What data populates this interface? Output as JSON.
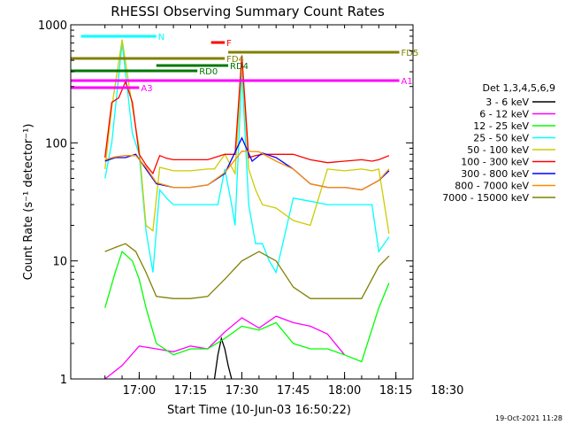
{
  "chart_data": {
    "type": "line",
    "title": "RHESSI Observing Summary Count Rates",
    "xlabel": "Start Time (10-Jun-03 16:50:22)",
    "ylabel": "Count Rate (s⁻¹ detector⁻¹)",
    "yscale": "log",
    "ylim": [
      1,
      1000
    ],
    "xlim_minutes": [
      -10,
      90
    ],
    "x_tick_labels": [
      "17:00",
      "17:15",
      "17:30",
      "17:45",
      "18:00",
      "18:15",
      "18:30"
    ],
    "x_tick_minutes": [
      10,
      25,
      40,
      55,
      70,
      85,
      100
    ],
    "y_tick_labels": [
      "1",
      "10",
      "100",
      "1000"
    ],
    "y_tick_values": [
      1,
      10,
      100,
      1000
    ],
    "legend_title": "Det 1,3,4,5,6,9",
    "legend_position": "right",
    "timestamp": "19-Oct-2021 11:28",
    "series": [
      {
        "name": "3 - 6 keV",
        "color": "#000000",
        "x": [
          32,
          33,
          34,
          35,
          36,
          37
        ],
        "values": [
          1,
          1.6,
          2.2,
          1.8,
          1.3,
          1
        ]
      },
      {
        "name": "6 - 12 keV",
        "color": "#ff00ff",
        "x": [
          0,
          5,
          10,
          15,
          20,
          25,
          30,
          35,
          40,
          45,
          50,
          55,
          60,
          65,
          70
        ],
        "values": [
          1,
          1.3,
          1.9,
          1.8,
          1.7,
          1.9,
          1.8,
          2.5,
          3.3,
          2.7,
          3.4,
          3.0,
          2.8,
          2.4,
          1.6
        ]
      },
      {
        "name": "12 - 25 keV",
        "color": "#00ff00",
        "x": [
          0,
          3,
          5,
          8,
          10,
          12,
          15,
          20,
          25,
          30,
          35,
          40,
          45,
          50,
          55,
          60,
          65,
          70,
          75,
          80,
          83
        ],
        "values": [
          4,
          8,
          12,
          10,
          7,
          4,
          2,
          1.6,
          1.8,
          1.8,
          2.2,
          2.8,
          2.6,
          3,
          2,
          1.8,
          1.8,
          1.6,
          1.4,
          4,
          6.5
        ]
      },
      {
        "name": "25 - 50 keV",
        "color": "#00ffff",
        "x": [
          0,
          2,
          5,
          8,
          10,
          12,
          14,
          16,
          18,
          20,
          25,
          30,
          33,
          35,
          37,
          38,
          40,
          42,
          44,
          46,
          48,
          50,
          55,
          60,
          65,
          70,
          75,
          78,
          80,
          83
        ],
        "values": [
          50,
          100,
          700,
          120,
          80,
          18,
          8,
          40,
          34,
          30,
          30,
          30,
          30,
          60,
          30,
          20,
          400,
          30,
          14,
          14,
          10,
          8,
          34,
          32,
          30,
          30,
          30,
          30,
          12,
          16
        ]
      },
      {
        "name": "50 - 100 keV",
        "color": "#cccc00",
        "x": [
          0,
          2,
          5,
          8,
          10,
          12,
          14,
          16,
          20,
          25,
          30,
          32,
          35,
          38,
          40,
          42,
          44,
          46,
          50,
          55,
          60,
          65,
          70,
          75,
          78,
          80,
          83
        ],
        "values": [
          60,
          200,
          750,
          200,
          90,
          20,
          18,
          62,
          58,
          58,
          60,
          60,
          80,
          55,
          500,
          60,
          40,
          30,
          28,
          22,
          20,
          60,
          58,
          60,
          58,
          60,
          17
        ]
      },
      {
        "name": "100 - 300 keV",
        "color": "#ff0000",
        "x": [
          0,
          2,
          4,
          6,
          8,
          10,
          12,
          14,
          16,
          18,
          20,
          25,
          30,
          35,
          38,
          40,
          42,
          44,
          46,
          50,
          55,
          60,
          65,
          70,
          75,
          78,
          80,
          83
        ],
        "values": [
          75,
          220,
          240,
          330,
          220,
          80,
          65,
          55,
          78,
          74,
          72,
          72,
          72,
          80,
          80,
          550,
          75,
          78,
          80,
          80,
          80,
          72,
          68,
          70,
          72,
          70,
          72,
          78
        ]
      },
      {
        "name": "300 - 800 keV",
        "color": "#0000ff",
        "x": [
          0,
          3,
          6,
          9,
          12,
          15,
          20,
          25,
          30,
          35,
          40,
          43,
          46,
          50,
          55,
          60,
          65,
          70,
          75,
          80,
          83
        ],
        "values": [
          70,
          75,
          75,
          80,
          60,
          45,
          42,
          42,
          44,
          55,
          110,
          70,
          82,
          75,
          60,
          45,
          42,
          42,
          40,
          48,
          58
        ]
      },
      {
        "name": "800 - 7000 keV",
        "color": "#ff8c00",
        "x": [
          0,
          3,
          6,
          9,
          12,
          15,
          20,
          25,
          30,
          35,
          40,
          45,
          50,
          55,
          60,
          65,
          70,
          75,
          80,
          83
        ],
        "values": [
          72,
          76,
          78,
          78,
          62,
          46,
          42,
          42,
          44,
          56,
          85,
          84,
          70,
          60,
          45,
          42,
          42,
          40,
          48,
          60
        ]
      },
      {
        "name": "7000 - 15000 keV",
        "color": "#808000",
        "x": [
          0,
          3,
          6,
          9,
          12,
          15,
          20,
          25,
          30,
          35,
          40,
          45,
          50,
          55,
          60,
          65,
          70,
          75,
          80,
          83
        ],
        "values": [
          12,
          13,
          14,
          12,
          8,
          5,
          4.8,
          4.8,
          5,
          7,
          10,
          12,
          10,
          6,
          4.8,
          4.8,
          4.8,
          4.8,
          9,
          11
        ]
      }
    ],
    "flags": [
      {
        "label": "N",
        "color": "#00ffff",
        "x1": -7,
        "x2": 15,
        "level": "top"
      },
      {
        "label": "F",
        "color": "#ff0000",
        "x1": 31,
        "x2": 35,
        "level": "flare"
      },
      {
        "label": "FD4",
        "color": "#808000",
        "x1": -10,
        "x2": 35,
        "level": "fd4"
      },
      {
        "label": "FD5",
        "color": "#808000",
        "x1": 36,
        "x2": 86,
        "level": "fd5"
      },
      {
        "label": "RD0",
        "color": "#007700",
        "x1": -10,
        "x2": 27,
        "level": "rd0"
      },
      {
        "label": "RD4",
        "color": "#007700",
        "x1": 15,
        "x2": 36,
        "level": "rd4"
      },
      {
        "label": "A1",
        "color": "#ff00ff",
        "x1": -10,
        "x2": 86,
        "level": "a1"
      },
      {
        "label": "A3",
        "color": "#ff00ff",
        "x1": -10,
        "x2": 10,
        "level": "a3"
      }
    ]
  }
}
